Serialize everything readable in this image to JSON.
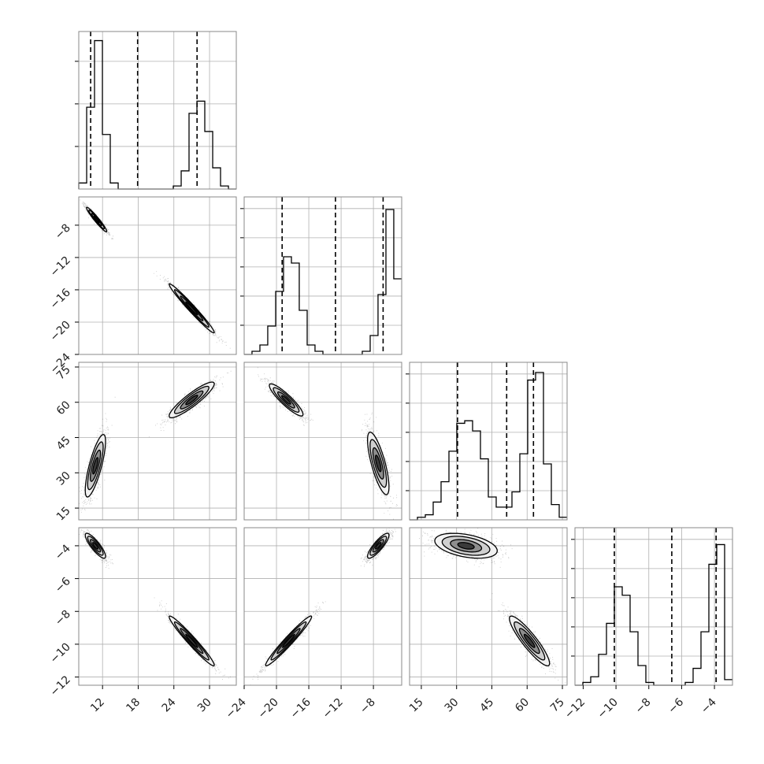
{
  "chart_data": {
    "type": "corner",
    "grid": true,
    "n_params": 4,
    "params": [
      {
        "ticks": [
          12,
          18,
          24,
          30
        ],
        "range": [
          8.0,
          34.5
        ],
        "quantiles": [
          10.0,
          17.9,
          27.9
        ]
      },
      {
        "ticks": [
          -24,
          -20,
          -16,
          -12,
          -8
        ],
        "range": [
          -24.0,
          -4.5
        ],
        "quantiles": [
          -19.3,
          -12.7,
          -6.8
        ]
      },
      {
        "ticks": [
          15,
          30,
          45,
          60,
          75
        ],
        "range": [
          10.0,
          77.0
        ],
        "quantiles": [
          30.4,
          51.3,
          62.7
        ]
      },
      {
        "ticks": [
          -12,
          -10,
          -8,
          -6,
          -4
        ],
        "range": [
          -12.5,
          -2.9
        ],
        "quantiles": [
          -10.1,
          -6.6,
          -3.9
        ]
      }
    ],
    "histograms": [
      {
        "edges": [
          8.0,
          9.33,
          10.65,
          11.98,
          13.3,
          14.63,
          15.95,
          17.28,
          18.6,
          19.93,
          21.25,
          22.58,
          23.9,
          25.23,
          26.55,
          27.88,
          29.2,
          30.53,
          31.85,
          33.18,
          34.5
        ],
        "counts": [
          2,
          27,
          49,
          18,
          2,
          0,
          0,
          0,
          0,
          0,
          0,
          0,
          1,
          6,
          25,
          29,
          19,
          7,
          1,
          0
        ],
        "ymax": 52
      },
      {
        "edges": [
          -24.0,
          -23.03,
          -22.05,
          -21.08,
          -20.1,
          -19.13,
          -18.15,
          -17.18,
          -16.2,
          -15.23,
          -14.25,
          -13.28,
          -12.3,
          -11.33,
          -10.35,
          -9.38,
          -8.4,
          -7.43,
          -6.45,
          -5.48,
          -4.5
        ],
        "counts": [
          0,
          1,
          3,
          9,
          20,
          31,
          29,
          14,
          3,
          1,
          0,
          0,
          0,
          0,
          0,
          1,
          6,
          19,
          46,
          24
        ],
        "ymax": 50
      },
      {
        "edges": [
          10.0,
          13.35,
          16.7,
          20.05,
          23.4,
          26.75,
          30.1,
          33.45,
          36.8,
          40.15,
          43.5,
          46.85,
          50.2,
          53.55,
          56.9,
          60.25,
          63.6,
          66.95,
          70.3,
          73.65,
          77.0
        ],
        "counts": [
          0,
          1,
          2,
          7,
          15,
          27,
          38,
          39,
          35,
          24,
          9,
          5,
          5,
          11,
          26,
          55,
          58,
          22,
          6,
          1
        ],
        "ymax": 62
      },
      {
        "edges": [
          -12.5,
          -12.02,
          -11.54,
          -11.06,
          -10.58,
          -10.1,
          -9.62,
          -9.14,
          -8.66,
          -8.18,
          -7.7,
          -7.22,
          -6.74,
          -6.26,
          -5.78,
          -5.3,
          -4.82,
          -4.34,
          -3.86,
          -3.38,
          -2.9
        ],
        "counts": [
          0,
          1,
          3,
          11,
          22,
          35,
          32,
          19,
          7,
          1,
          0,
          0,
          0,
          0,
          1,
          6,
          19,
          43,
          50,
          2
        ],
        "ymax": 56
      }
    ],
    "pairs": [
      {
        "x": 0,
        "y": 1,
        "modes": [
          {
            "center": [
              11.0,
              -7.3
            ],
            "sd": [
              0.9,
              0.8
            ],
            "rho": -0.96,
            "weight": 0.5
          },
          {
            "center": [
              27.0,
              -18.3
            ],
            "sd": [
              2.0,
              1.6
            ],
            "rho": -0.98,
            "weight": 0.5
          }
        ]
      },
      {
        "x": 0,
        "y": 2,
        "modes": [
          {
            "center": [
              10.8,
              33.0
            ],
            "sd": [
              0.9,
              7.0
            ],
            "rho": 0.78,
            "weight": 0.5
          },
          {
            "center": [
              27.0,
              61.0
            ],
            "sd": [
              2.0,
              4.0
            ],
            "rho": 0.9,
            "weight": 0.5
          }
        ]
      },
      {
        "x": 1,
        "y": 2,
        "modes": [
          {
            "center": [
              -18.8,
              61.0
            ],
            "sd": [
              1.1,
              3.6
            ],
            "rho": -0.9,
            "weight": 0.5
          },
          {
            "center": [
              -7.4,
              34.0
            ],
            "sd": [
              0.7,
              7.0
            ],
            "rho": -0.75,
            "weight": 0.5
          }
        ]
      },
      {
        "x": 0,
        "y": 3,
        "modes": [
          {
            "center": [
              10.8,
              -4.0
            ],
            "sd": [
              0.9,
              0.4
            ],
            "rho": -0.85,
            "weight": 0.5
          },
          {
            "center": [
              27.0,
              -9.8
            ],
            "sd": [
              2.0,
              0.8
            ],
            "rho": -0.97,
            "weight": 0.5
          }
        ]
      },
      {
        "x": 1,
        "y": 3,
        "modes": [
          {
            "center": [
              -7.4,
              -4.0
            ],
            "sd": [
              0.7,
              0.4
            ],
            "rho": 0.85,
            "weight": 0.5
          },
          {
            "center": [
              -18.5,
              -9.8
            ],
            "sd": [
              1.5,
              0.8
            ],
            "rho": 0.97,
            "weight": 0.5
          }
        ]
      },
      {
        "x": 2,
        "y": 3,
        "modes": [
          {
            "center": [
              34.0,
              -4.0
            ],
            "sd": [
              7.0,
              0.4
            ],
            "rho": -0.4,
            "weight": 0.5
          },
          {
            "center": [
              61.0,
              -9.8
            ],
            "sd": [
              4.5,
              0.8
            ],
            "rho": -0.9,
            "weight": 0.5
          }
        ]
      }
    ]
  }
}
